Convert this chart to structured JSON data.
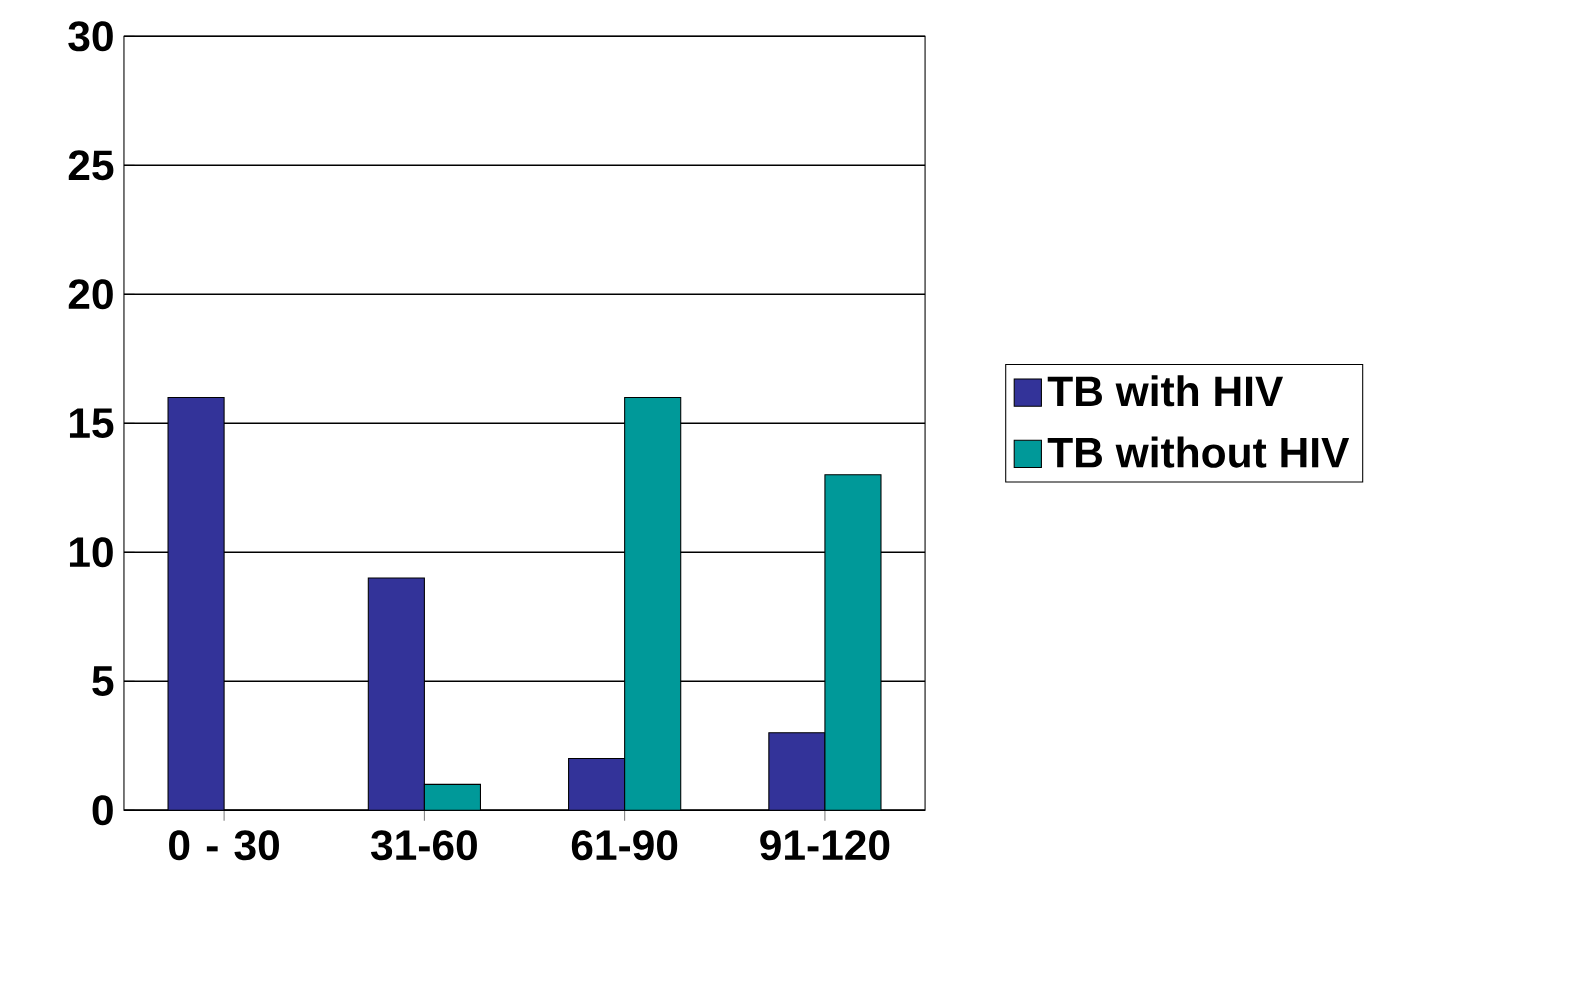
{
  "chart_data": {
    "type": "bar",
    "categories": [
      "0 - 30",
      "31-60",
      "61-90",
      "91-120"
    ],
    "series": [
      {
        "name": "TB with HIV",
        "color": "#333399",
        "values": [
          16,
          9,
          2,
          3
        ]
      },
      {
        "name": "TB without HIV",
        "color": "#009999",
        "values": [
          0,
          1,
          16,
          13
        ]
      }
    ],
    "ylim": [
      0,
      30
    ],
    "yticks": [
      0,
      5,
      10,
      15,
      20,
      25,
      30
    ],
    "grid": "y",
    "legend": "right"
  }
}
